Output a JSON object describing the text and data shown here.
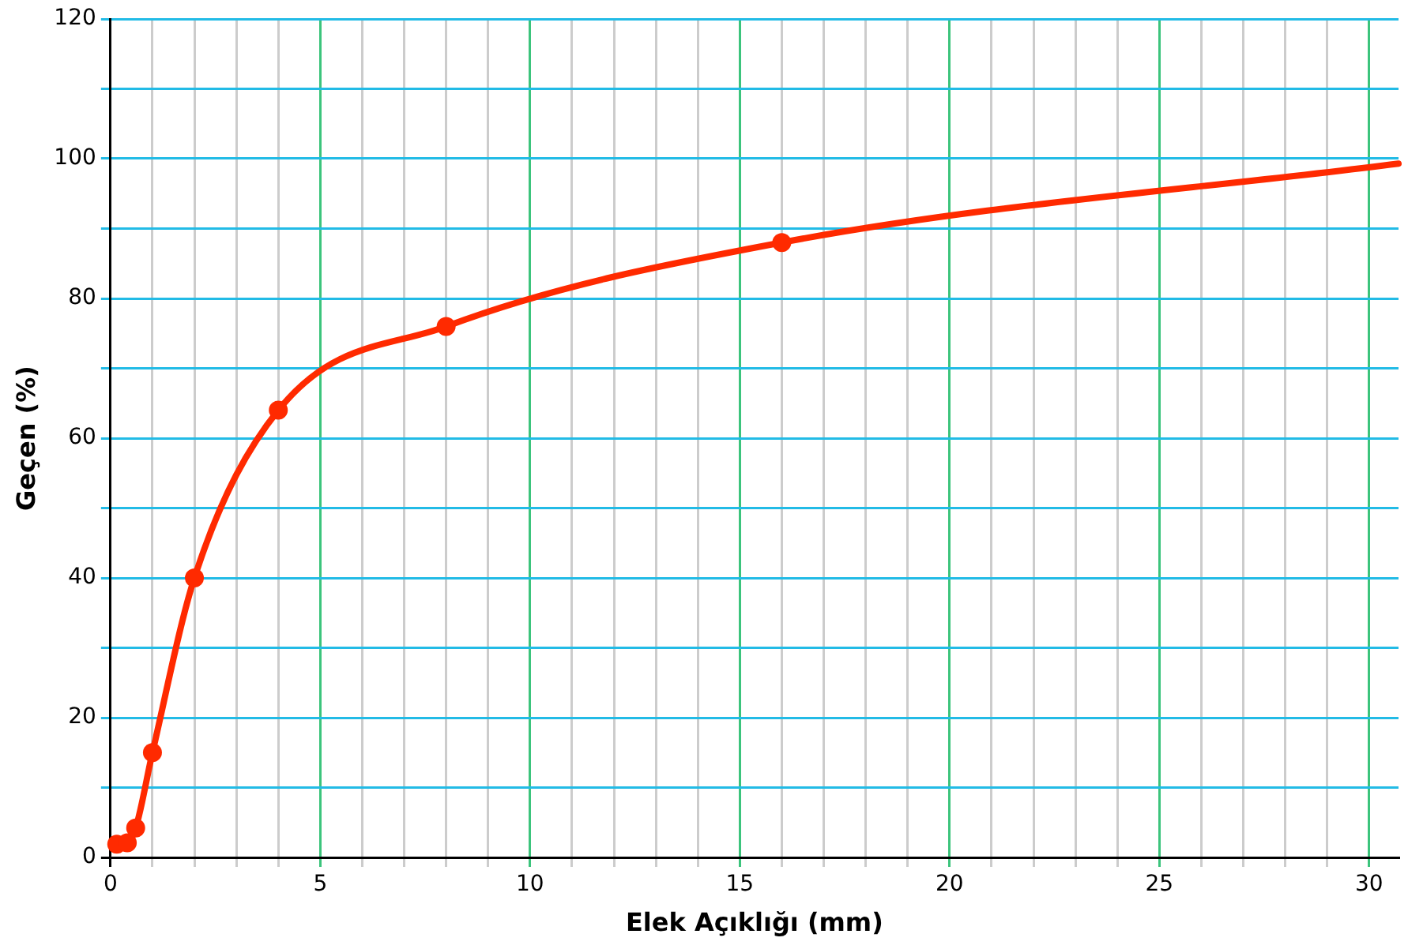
{
  "chart_data": {
    "type": "line",
    "xlabel": "Elek Açıklığı (mm)",
    "ylabel": "Geçen (%)",
    "series": [
      {
        "color": "#ff2a00",
        "x": [
          0.15,
          0.4,
          0.6,
          1,
          2,
          4,
          8,
          16,
          30.7
        ],
        "values": [
          1.9,
          2.1,
          4.2,
          15,
          40,
          64,
          76,
          88,
          99.3
        ]
      }
    ],
    "xlim": [
      0,
      30.7
    ],
    "ylim": [
      0,
      120
    ],
    "xticks": [
      0,
      {
        "value": 1,
        "label": null
      },
      {
        "value": 2,
        "label": null
      },
      {
        "value": 3,
        "label": null
      },
      {
        "value": 4,
        "label": null
      },
      5,
      {
        "value": 6,
        "label": null
      },
      {
        "value": 7,
        "label": null
      },
      {
        "value": 8,
        "label": null
      },
      {
        "value": 9,
        "label": null
      },
      10,
      {
        "value": 11,
        "label": null
      },
      {
        "value": 12,
        "label": null
      },
      {
        "value": 13,
        "label": null
      },
      {
        "value": 14,
        "label": null
      },
      15,
      {
        "value": 16,
        "label": null
      },
      {
        "value": 17,
        "label": null
      },
      {
        "value": 18,
        "label": null
      },
      {
        "value": 19,
        "label": null
      },
      20,
      {
        "value": 21,
        "label": null
      },
      {
        "value": 22,
        "label": null
      },
      {
        "value": 23,
        "label": null
      },
      {
        "value": 24,
        "label": null
      },
      25,
      {
        "value": 26,
        "label": null
      },
      {
        "value": 27,
        "label": null
      },
      {
        "value": 28,
        "label": null
      },
      {
        "value": 29,
        "label": null
      },
      30
    ],
    "yticks": [
      0,
      {
        "value": 10,
        "label": null
      },
      20,
      {
        "value": 30,
        "label": null
      },
      40,
      {
        "value": 50,
        "label": null
      },
      60,
      {
        "value": 70,
        "label": null
      },
      80,
      {
        "value": 90,
        "label": null
      },
      100,
      {
        "value": 110,
        "label": null
      },
      120
    ],
    "grid": true,
    "marker": "circle",
    "line_style": "solid",
    "legend": false
  }
}
